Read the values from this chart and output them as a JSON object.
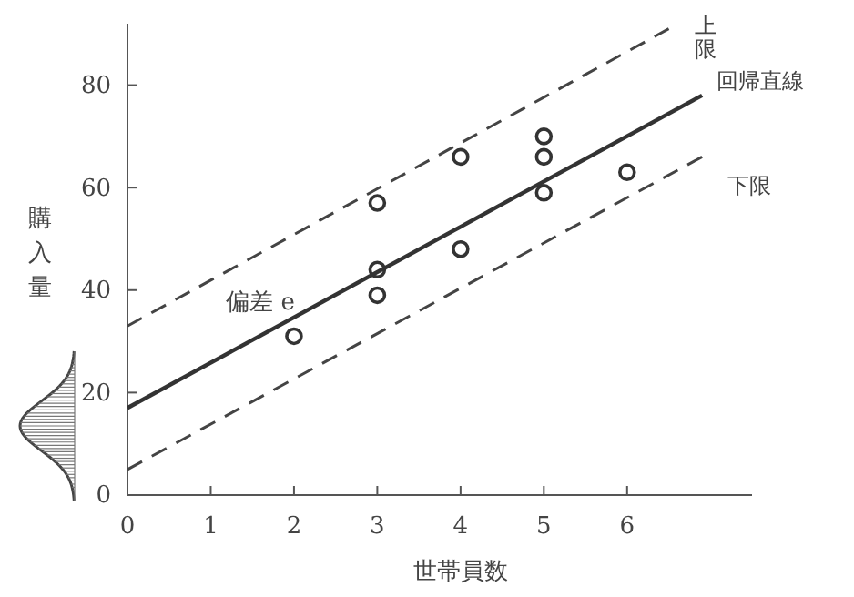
{
  "chart_data": {
    "type": "scatter",
    "xlabel": "世帯員数",
    "ylabel": "購入量",
    "annotations": [
      "偏差 e"
    ],
    "xlim": [
      0,
      7.5
    ],
    "ylim": [
      0,
      92
    ],
    "xticks": [
      0,
      1,
      2,
      3,
      4,
      5,
      6
    ],
    "yticks": [
      0,
      20,
      40,
      60,
      80
    ],
    "series": [
      {
        "marker": "circle",
        "color": "#333333",
        "x": [
          2,
          3,
          3,
          3,
          4,
          4,
          5,
          5,
          5,
          6
        ],
        "values": [
          31,
          57,
          44,
          39,
          66,
          48,
          70,
          66,
          59,
          63
        ]
      },
      {
        "type": "line",
        "name": "上限",
        "color": "#444444",
        "line_style": "dashed",
        "x": [
          0,
          6.5
        ],
        "values": [
          33,
          91
        ]
      },
      {
        "type": "line",
        "name": "回帰直線",
        "color": "#333333",
        "line_style": "solid",
        "x": [
          0,
          6.9
        ],
        "values": [
          17,
          78
        ]
      },
      {
        "type": "line",
        "name": "下限",
        "color": "#444444",
        "line_style": "dashed",
        "x": [
          0,
          6.9
        ],
        "values": [
          5,
          66
        ]
      }
    ]
  }
}
